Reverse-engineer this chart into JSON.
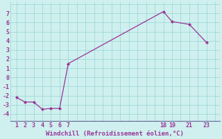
{
  "x": [
    1,
    2,
    3,
    4,
    5,
    6,
    7,
    18,
    19,
    21,
    23
  ],
  "y": [
    -2.2,
    -2.7,
    -2.7,
    -3.5,
    -3.4,
    -3.4,
    1.5,
    7.2,
    6.1,
    5.8,
    3.8
  ],
  "line_color": "#993399",
  "marker_color": "#993399",
  "bg_color": "#cff0ee",
  "grid_color": "#9dd9d9",
  "xlabel": "Windchill (Refroidissement éolien,°C)",
  "xlabel_color": "#993399",
  "tick_color": "#993399",
  "xticks": [
    1,
    2,
    3,
    4,
    5,
    6,
    7,
    18,
    19,
    21,
    23
  ],
  "yticks": [
    -4,
    -3,
    -2,
    -1,
    0,
    1,
    2,
    3,
    4,
    5,
    6,
    7
  ],
  "ylim": [
    -4.8,
    8.2
  ],
  "xlim": [
    0.3,
    24.5
  ],
  "figwidth": 3.2,
  "figheight": 2.0,
  "dpi": 100
}
